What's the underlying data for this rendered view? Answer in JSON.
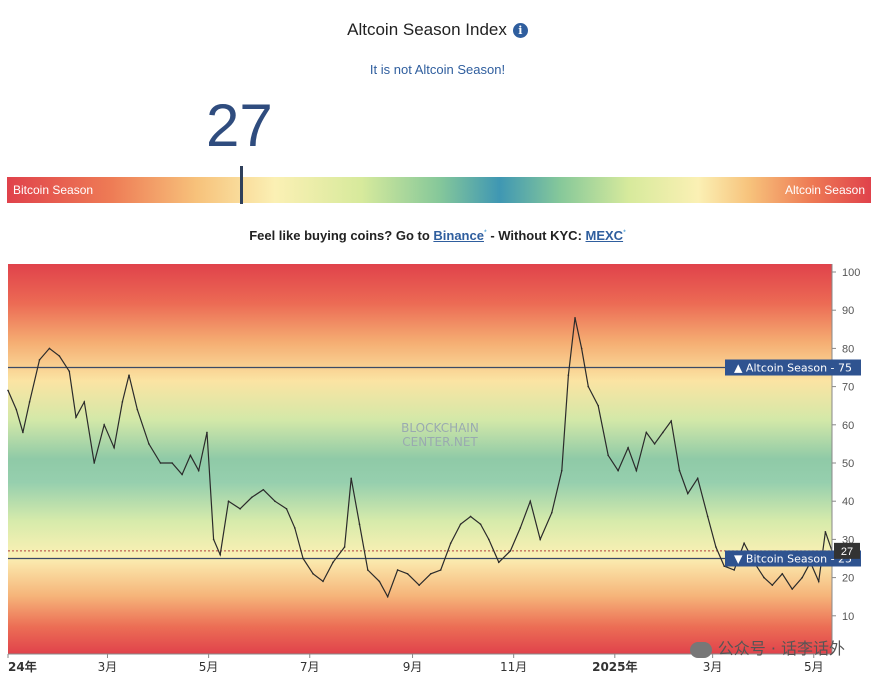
{
  "header": {
    "title": "Altcoin Season Index",
    "info_icon": "info-icon",
    "status": "It is not Altcoin Season!"
  },
  "gauge": {
    "value": "27",
    "left_label": "Bitcoin Season",
    "right_label": "Altcoin Season"
  },
  "promo": {
    "prefix": "Feel like buying coins? Go to ",
    "link1": "Binance",
    "middle": " - Without KYC: ",
    "link2": "MEXC",
    "sup": "*"
  },
  "chart_data": {
    "type": "line",
    "watermark": "BLOCKCHAIN CENTER.NET",
    "ylim": [
      0,
      100
    ],
    "y_ticks": [
      10,
      20,
      30,
      40,
      50,
      60,
      70,
      80,
      90,
      100
    ],
    "x_tick_labels": [
      "24年",
      "3月",
      "5月",
      "7月",
      "9月",
      "11月",
      "2025年",
      "3月",
      "5月"
    ],
    "x_tick_dates": [
      "2024-01-01",
      "2024-03-01",
      "2024-05-01",
      "2024-07-01",
      "2024-09-01",
      "2024-11-01",
      "2025-01-01",
      "2025-03-01",
      "2025-05-01"
    ],
    "x_range": [
      "2024-01-01",
      "2025-05-12"
    ],
    "thresholds": [
      {
        "label": "▲ Altcoin Season - 75",
        "value": 75
      },
      {
        "label": "▼ Bitcoin Season - 25",
        "value": 25
      }
    ],
    "current": {
      "label": "27",
      "value": 27
    },
    "series": [
      {
        "points": [
          [
            "2024-01-01",
            69
          ],
          [
            "2024-01-06",
            64
          ],
          [
            "2024-01-10",
            58
          ],
          [
            "2024-01-14",
            66
          ],
          [
            "2024-01-20",
            77
          ],
          [
            "2024-01-26",
            80
          ],
          [
            "2024-02-01",
            78
          ],
          [
            "2024-02-07",
            74
          ],
          [
            "2024-02-11",
            62
          ],
          [
            "2024-02-16",
            66
          ],
          [
            "2024-02-22",
            50
          ],
          [
            "2024-02-28",
            60
          ],
          [
            "2024-03-05",
            54
          ],
          [
            "2024-03-10",
            66
          ],
          [
            "2024-03-14",
            73
          ],
          [
            "2024-03-19",
            64
          ],
          [
            "2024-03-26",
            55
          ],
          [
            "2024-04-02",
            50
          ],
          [
            "2024-04-09",
            50
          ],
          [
            "2024-04-15",
            47
          ],
          [
            "2024-04-20",
            52
          ],
          [
            "2024-04-25",
            48
          ],
          [
            "2024-04-30",
            58
          ],
          [
            "2024-05-04",
            30
          ],
          [
            "2024-05-08",
            26
          ],
          [
            "2024-05-13",
            40
          ],
          [
            "2024-05-20",
            38
          ],
          [
            "2024-05-27",
            41
          ],
          [
            "2024-06-03",
            43
          ],
          [
            "2024-06-10",
            40
          ],
          [
            "2024-06-17",
            38
          ],
          [
            "2024-06-22",
            33
          ],
          [
            "2024-06-27",
            25
          ],
          [
            "2024-07-03",
            21
          ],
          [
            "2024-07-09",
            19
          ],
          [
            "2024-07-15",
            24
          ],
          [
            "2024-07-22",
            28
          ],
          [
            "2024-07-26",
            46
          ],
          [
            "2024-07-31",
            34
          ],
          [
            "2024-08-05",
            22
          ],
          [
            "2024-08-12",
            19
          ],
          [
            "2024-08-17",
            15
          ],
          [
            "2024-08-23",
            22
          ],
          [
            "2024-08-29",
            21
          ],
          [
            "2024-09-05",
            18
          ],
          [
            "2024-09-12",
            21
          ],
          [
            "2024-09-18",
            22
          ],
          [
            "2024-09-24",
            29
          ],
          [
            "2024-09-30",
            34
          ],
          [
            "2024-10-06",
            36
          ],
          [
            "2024-10-12",
            34
          ],
          [
            "2024-10-17",
            30
          ],
          [
            "2024-10-23",
            24
          ],
          [
            "2024-10-30",
            27
          ],
          [
            "2024-11-05",
            33
          ],
          [
            "2024-11-11",
            40
          ],
          [
            "2024-11-17",
            30
          ],
          [
            "2024-11-24",
            37
          ],
          [
            "2024-11-30",
            48
          ],
          [
            "2024-12-04",
            73
          ],
          [
            "2024-12-08",
            88
          ],
          [
            "2024-12-12",
            80
          ],
          [
            "2024-12-16",
            70
          ],
          [
            "2024-12-22",
            65
          ],
          [
            "2024-12-28",
            52
          ],
          [
            "2025-01-03",
            48
          ],
          [
            "2025-01-09",
            54
          ],
          [
            "2025-01-14",
            48
          ],
          [
            "2025-01-20",
            58
          ],
          [
            "2025-01-25",
            55
          ],
          [
            "2025-01-30",
            58
          ],
          [
            "2025-02-04",
            61
          ],
          [
            "2025-02-09",
            48
          ],
          [
            "2025-02-14",
            42
          ],
          [
            "2025-02-20",
            46
          ],
          [
            "2025-02-26",
            36
          ],
          [
            "2025-03-03",
            28
          ],
          [
            "2025-03-08",
            23
          ],
          [
            "2025-03-14",
            22
          ],
          [
            "2025-03-20",
            29
          ],
          [
            "2025-03-26",
            24
          ],
          [
            "2025-04-01",
            20
          ],
          [
            "2025-04-06",
            18
          ],
          [
            "2025-04-12",
            21
          ],
          [
            "2025-04-18",
            17
          ],
          [
            "2025-04-24",
            20
          ],
          [
            "2025-04-29",
            24
          ],
          [
            "2025-05-04",
            19
          ],
          [
            "2025-05-08",
            32
          ],
          [
            "2025-05-12",
            27
          ]
        ]
      }
    ]
  },
  "watermark": {
    "icon": "wechat-icon",
    "text": "公众号 · 话李话外"
  }
}
